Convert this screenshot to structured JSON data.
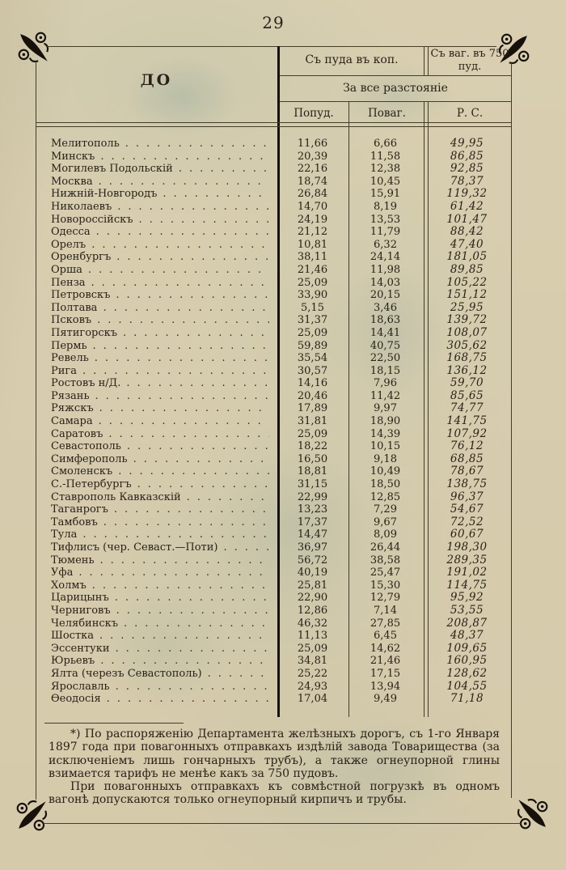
{
  "page": {
    "number": "29"
  },
  "colors": {
    "paper": "#d8ceae",
    "ink": "#29211a",
    "ink_strong": "#17110c",
    "rule": "#463c2e",
    "stain": "#8cb0a4"
  },
  "table": {
    "header": {
      "to": "ДО",
      "per_pood": "Съ пуда въ коп.",
      "per_wagon": "Съ ваг. въ 750 пуд.",
      "distance": "За все разстояніе",
      "columns": {
        "popud": "Попуд.",
        "povag": "Поваг.",
        "rs": "Р. С."
      }
    },
    "rows": [
      {
        "name": "Мелитополь",
        "popud": "11,66",
        "povag": "6,66",
        "rs": "49,95"
      },
      {
        "name": "Минскъ",
        "popud": "20,39",
        "povag": "11,58",
        "rs": "86,85"
      },
      {
        "name": "Могилевъ Подольскій",
        "popud": "22,16",
        "povag": "12,38",
        "rs": "92,85"
      },
      {
        "name": "Москва",
        "popud": "18,74",
        "povag": "10,45",
        "rs": "78,37"
      },
      {
        "name": "Нижній-Новгородъ",
        "popud": "26,84",
        "povag": "15,91",
        "rs": "119,32"
      },
      {
        "name": "Николаевъ",
        "popud": "14,70",
        "povag": "8,19",
        "rs": "61,42"
      },
      {
        "name": "Новороссійскъ",
        "popud": "24,19",
        "povag": "13,53",
        "rs": "101,47"
      },
      {
        "name": "Одесса",
        "popud": "21,12",
        "povag": "11,79",
        "rs": "88,42"
      },
      {
        "name": "Орелъ",
        "popud": "10,81",
        "povag": "6,32",
        "rs": "47,40"
      },
      {
        "name": "Оренбургъ",
        "popud": "38,11",
        "povag": "24,14",
        "rs": "181,05"
      },
      {
        "name": "Орша",
        "popud": "21,46",
        "povag": "11,98",
        "rs": "89,85"
      },
      {
        "name": "Пенза",
        "popud": "25,09",
        "povag": "14,03",
        "rs": "105,22"
      },
      {
        "name": "Петровскъ",
        "popud": "33,90",
        "povag": "20,15",
        "rs": "151,12"
      },
      {
        "name": "Полтава",
        "popud": "5,15",
        "povag": "3,46",
        "rs": "25,95"
      },
      {
        "name": "Псковъ",
        "popud": "31,37",
        "povag": "18,63",
        "rs": "139,72"
      },
      {
        "name": "Пятигорскъ",
        "popud": "25,09",
        "povag": "14,41",
        "rs": "108,07"
      },
      {
        "name": "Пермь",
        "popud": "59,89",
        "povag": "40,75",
        "rs": "305,62"
      },
      {
        "name": "Ревель",
        "popud": "35,54",
        "povag": "22,50",
        "rs": "168,75"
      },
      {
        "name": "Рига",
        "popud": "30,57",
        "povag": "18,15",
        "rs": "136,12"
      },
      {
        "name": "Ростовъ н/Д.",
        "popud": "14,16",
        "povag": "7,96",
        "rs": "59,70"
      },
      {
        "name": "Рязань",
        "popud": "20,46",
        "povag": "11,42",
        "rs": "85,65"
      },
      {
        "name": "Ряжскъ",
        "popud": "17,89",
        "povag": "9,97",
        "rs": "74,77"
      },
      {
        "name": "Самара",
        "popud": "31,81",
        "povag": "18,90",
        "rs": "141,75"
      },
      {
        "name": "Саратовъ",
        "popud": "25,09",
        "povag": "14,39",
        "rs": "107,92"
      },
      {
        "name": "Севастополь",
        "popud": "18,22",
        "povag": "10,15",
        "rs": "76,12"
      },
      {
        "name": "Симферополь",
        "popud": "16,50",
        "povag": "9,18",
        "rs": "68,85"
      },
      {
        "name": "Смоленскъ",
        "popud": "18,81",
        "povag": "10,49",
        "rs": "78,67"
      },
      {
        "name": "С.-Петербургъ",
        "popud": "31,15",
        "povag": "18,50",
        "rs": "138,75"
      },
      {
        "name": "Ставрополь Кавказскій",
        "popud": "22,99",
        "povag": "12,85",
        "rs": "96,37"
      },
      {
        "name": "Таганрогъ",
        "popud": "13,23",
        "povag": "7,29",
        "rs": "54,67"
      },
      {
        "name": "Тамбовъ",
        "popud": "17,37",
        "povag": "9,67",
        "rs": "72,52"
      },
      {
        "name": "Тула",
        "popud": "14,47",
        "povag": "8,09",
        "rs": "60,67"
      },
      {
        "name": "Тифлисъ (чер. Севаст.—Поти)",
        "popud": "36,97",
        "povag": "26,44",
        "rs": "198,30"
      },
      {
        "name": "Тюмень",
        "popud": "56,72",
        "povag": "38,58",
        "rs": "289,35"
      },
      {
        "name": "Уфа",
        "popud": "40,19",
        "povag": "25,47",
        "rs": "191,02"
      },
      {
        "name": "Холмъ",
        "popud": "25,81",
        "povag": "15,30",
        "rs": "114,75"
      },
      {
        "name": "Царицынъ",
        "popud": "22,90",
        "povag": "12,79",
        "rs": "95,92"
      },
      {
        "name": "Черниговъ",
        "popud": "12,86",
        "povag": "7,14",
        "rs": "53,55"
      },
      {
        "name": "Челябинскъ",
        "popud": "46,32",
        "povag": "27,85",
        "rs": "208,87"
      },
      {
        "name": "Шостка",
        "popud": "11,13",
        "povag": "6,45",
        "rs": "48,37"
      },
      {
        "name": "Эссентуки",
        "popud": "25,09",
        "povag": "14,62",
        "rs": "109,65"
      },
      {
        "name": "Юрьевъ",
        "popud": "34,81",
        "povag": "21,46",
        "rs": "160,95"
      },
      {
        "name": "Ялта (черезъ Севастополь)",
        "popud": "25,22",
        "povag": "17,15",
        "rs": "128,62"
      },
      {
        "name": "Ярославль",
        "popud": "24,93",
        "povag": "13,94",
        "rs": "104,55"
      },
      {
        "name": "Ѳеодосія",
        "popud": "17,04",
        "povag": "9,49",
        "rs": "71,18"
      }
    ]
  },
  "footnote": {
    "paragraphs": [
      "*) По распоряженію Департамента желѣзныхъ дорогъ, съ 1-го Января 1897 года при повагонныхъ отправкахъ издѣлій завода Товарищества (за исключеніемъ лишь гончарныхъ трубъ), а также огнеупорной глины взимается тарифъ не менѣе какъ за 750 пудовъ.",
      "При повагонныхъ отправкахъ къ совмѣстной погрузкѣ въ одномъ вагонѣ допускаются только огнеупорный кирпичъ и трубы."
    ]
  }
}
